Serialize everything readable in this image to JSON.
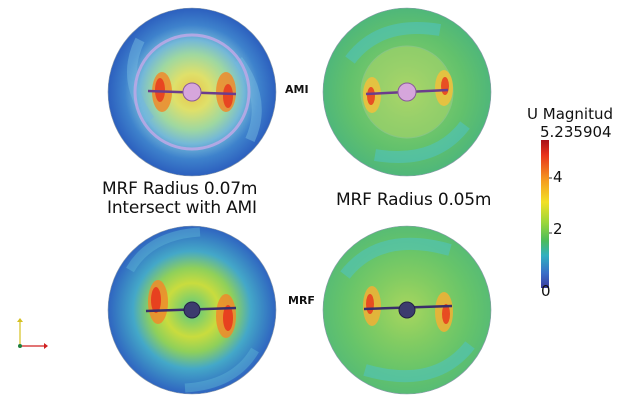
{
  "captions": {
    "left_line1": "MRF Radius 0.07m",
    "left_line2": "Intersect with AMI",
    "right": "MRF Radius 0.05m"
  },
  "row_labels": {
    "top": "AMI",
    "bottom": "MRF"
  },
  "colorbar": {
    "title": "U Magnitud",
    "max_label": "5.235904",
    "tick_4": "4",
    "tick_2": "2",
    "min_label": "0",
    "range": [
      0,
      5.235904
    ],
    "colors": [
      "#a8101a",
      "#e8321c",
      "#f5a020",
      "#f2e028",
      "#9ad63a",
      "#4cbc5a",
      "#30b0c0",
      "#3a6ec8",
      "#3a3a9e"
    ]
  },
  "panels": [
    {
      "name": "ami-mrf-0.07m",
      "background": "#2f68c4",
      "has_rotating_zone_outline": true
    },
    {
      "name": "ami-mrf-0.05m",
      "background": "#5cc46a",
      "has_rotating_zone_outline": false
    },
    {
      "name": "mrf-0.07m",
      "background": "#3a7fd0",
      "has_rotating_zone_outline": false
    },
    {
      "name": "mrf-0.05m",
      "background": "#6ac86a",
      "has_rotating_zone_outline": false
    }
  ],
  "triad": {
    "x_color": "#d02020",
    "y_color": "#d4c020",
    "z_color": "#208040"
  }
}
